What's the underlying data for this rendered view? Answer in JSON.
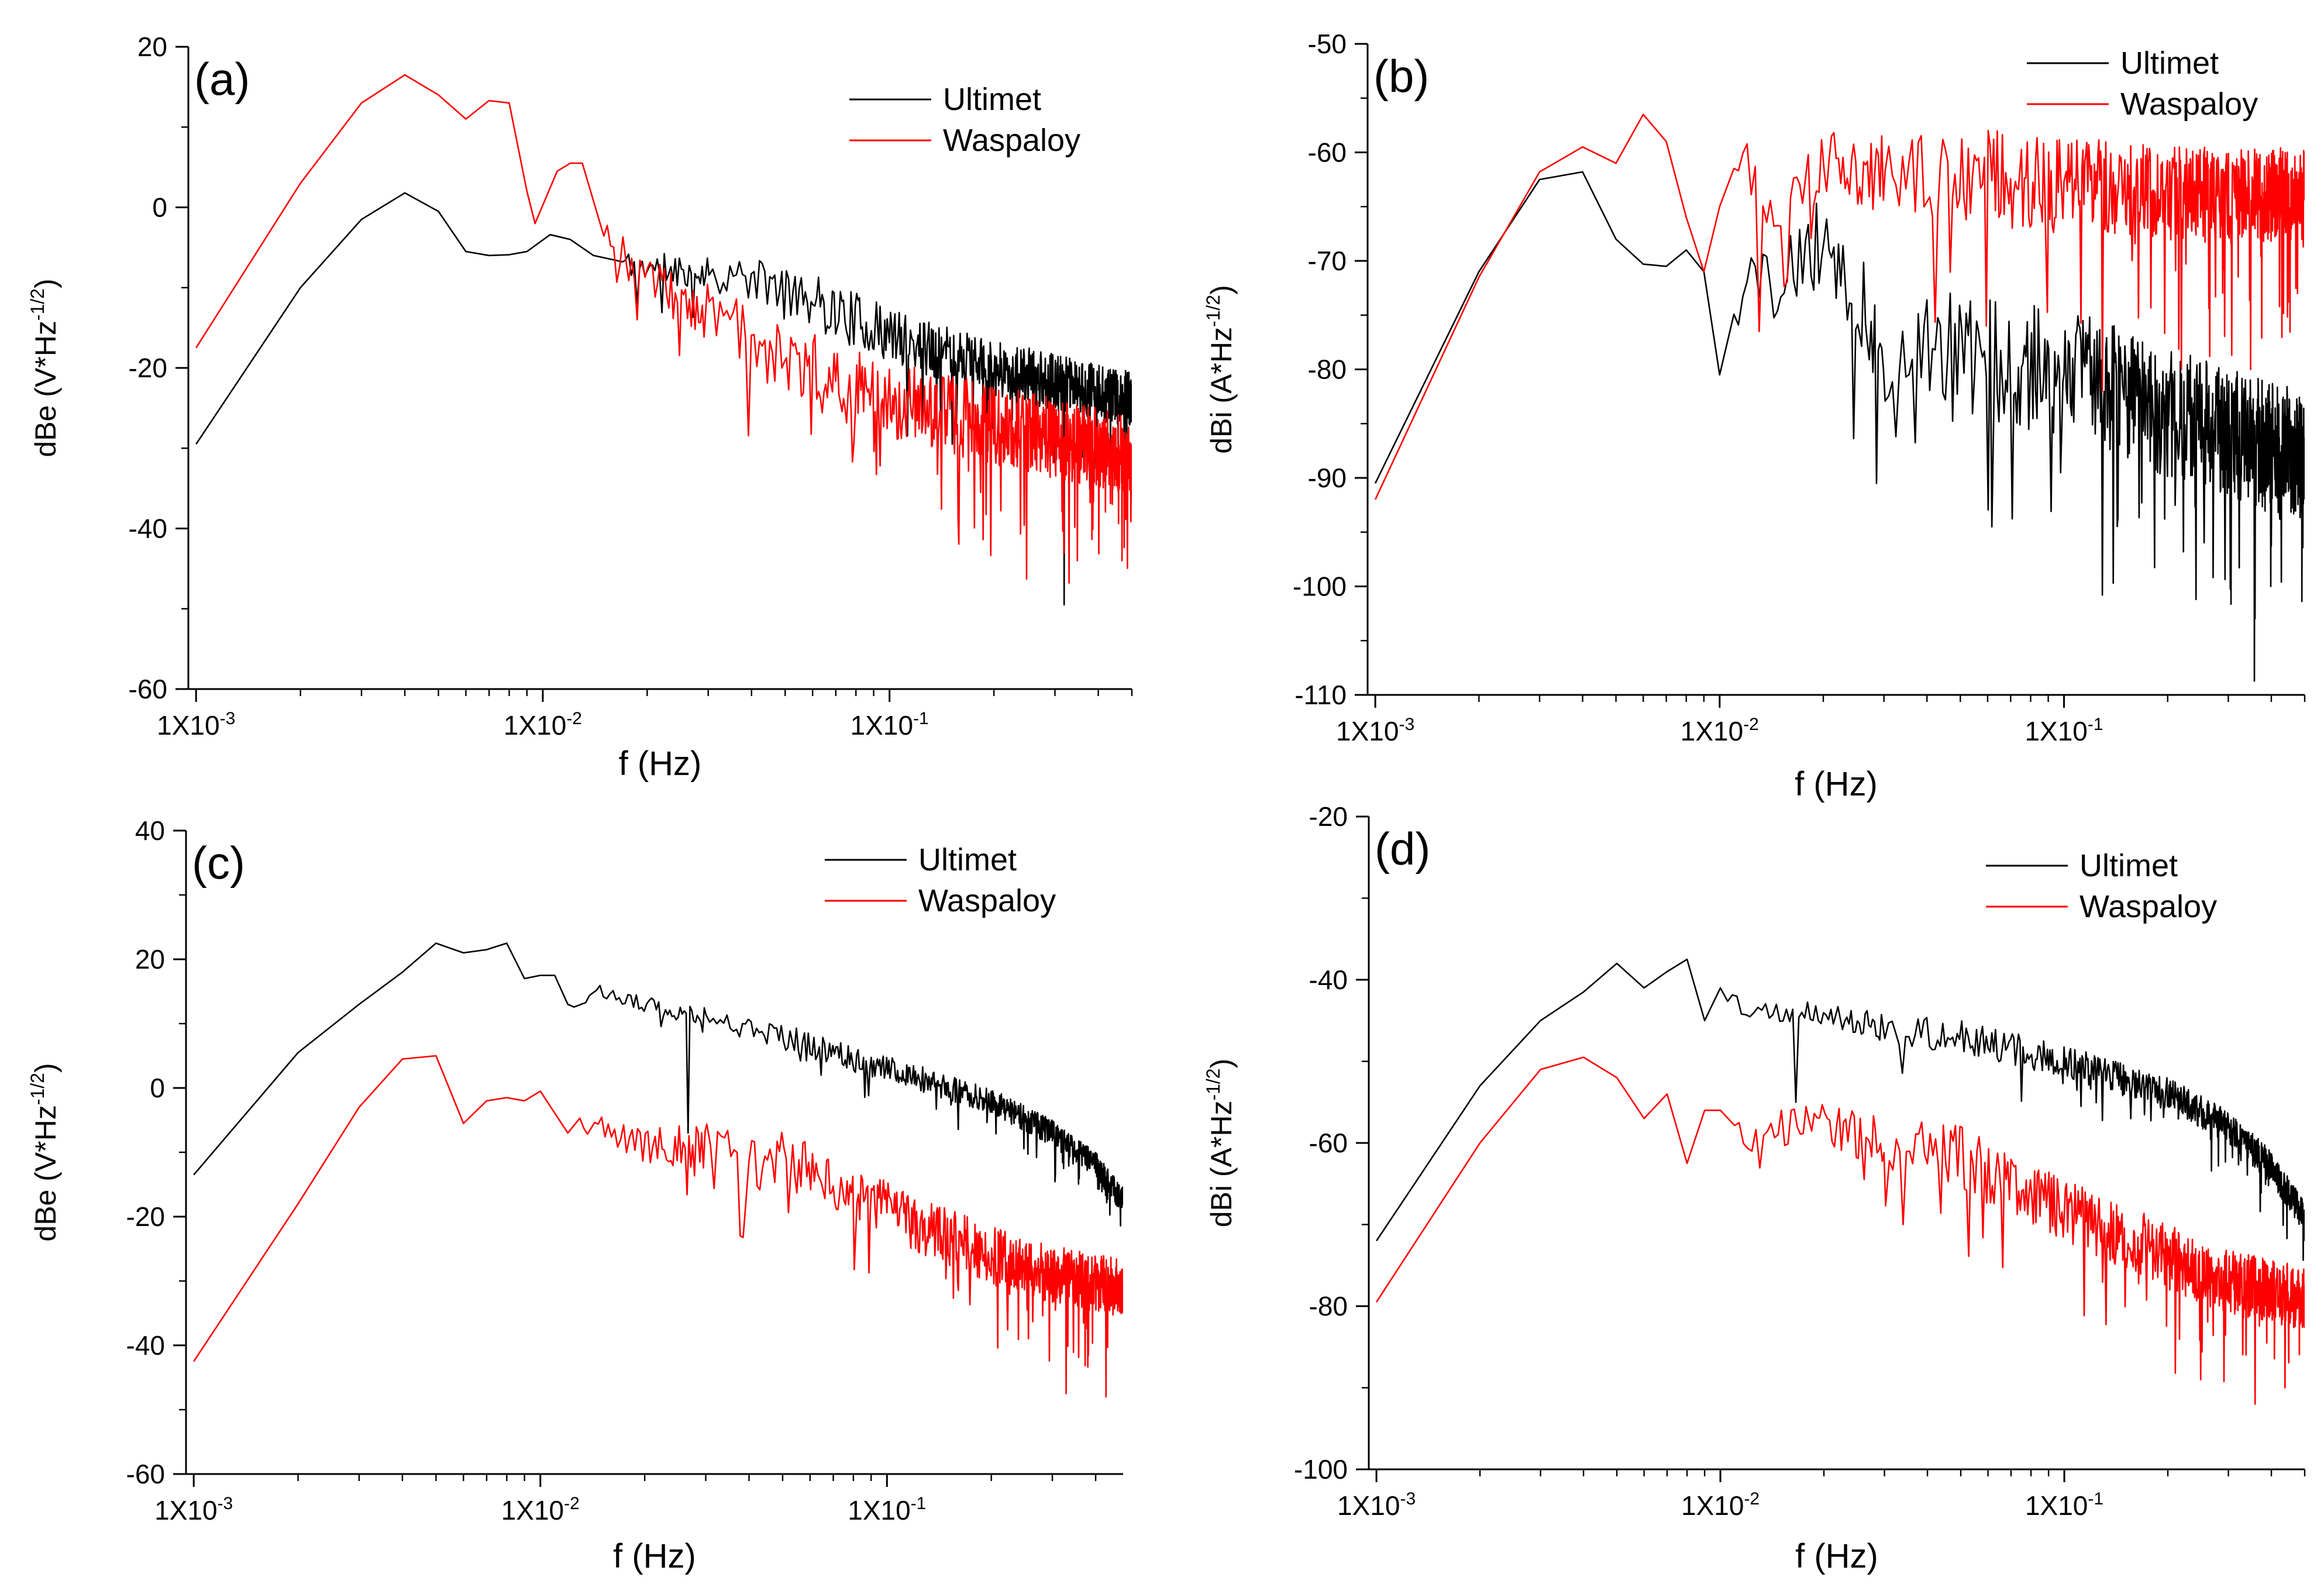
{
  "chart_data": [
    {
      "id": "a",
      "type": "line",
      "panel_label": "(a)",
      "xscale": "log",
      "xlim": [
        0.00095,
        0.5
      ],
      "ylim": [
        -60,
        20
      ],
      "yticks": [
        20,
        0,
        -20,
        -40,
        -60
      ],
      "xticks": [
        {
          "base": "1X10",
          "exp": "-3"
        },
        {
          "base": "1X10",
          "exp": "-2"
        },
        {
          "base": "1X10",
          "exp": "-1"
        }
      ],
      "xlabel": "f (Hz)",
      "ylabel": {
        "main": "dBe (V*Hz",
        "exp": "-1/2",
        "close": ")"
      },
      "legend_position": "top-right",
      "series": [
        {
          "name": "Ultimet",
          "color": "#000000",
          "anchors": [
            [
              0.001,
              -29.5
            ],
            [
              0.002,
              -10
            ],
            [
              0.003,
              -1.5
            ],
            [
              0.004,
              1.8
            ],
            [
              0.005,
              -0.5
            ],
            [
              0.006,
              -5.5
            ],
            [
              0.007,
              -6
            ],
            [
              0.008,
              -5.9
            ],
            [
              0.009,
              -5.5
            ],
            [
              0.0105,
              -3.4
            ],
            [
              0.012,
              -4
            ],
            [
              0.014,
              -6
            ],
            [
              0.02,
              -7.5
            ],
            [
              0.03,
              -8
            ],
            [
              0.05,
              -10
            ],
            [
              0.1,
              -16
            ],
            [
              0.2,
              -20
            ],
            [
              0.5,
              -24
            ]
          ],
          "noise_start": 0.017,
          "noise_amplitude": 7,
          "seed": 11,
          "dips": [
            [
              0.019,
              -12
            ],
            [
              0.32,
              -49.5
            ],
            [
              0.42,
              -34
            ]
          ]
        },
        {
          "name": "Waspaloy",
          "color": "#ff0000",
          "anchors": [
            [
              0.001,
              -17.5
            ],
            [
              0.002,
              3
            ],
            [
              0.003,
              13
            ],
            [
              0.004,
              16.5
            ],
            [
              0.005,
              14
            ],
            [
              0.006,
              11
            ],
            [
              0.007,
              13.3
            ],
            [
              0.008,
              13
            ],
            [
              0.009,
              2
            ],
            [
              0.0095,
              -2
            ],
            [
              0.011,
              4.5
            ],
            [
              0.012,
              5.5
            ],
            [
              0.013,
              5.5
            ],
            [
              0.016,
              -5
            ],
            [
              0.02,
              -9
            ],
            [
              0.03,
              -13
            ],
            [
              0.05,
              -19
            ],
            [
              0.1,
              -24
            ],
            [
              0.2,
              -27
            ],
            [
              0.5,
              -31
            ]
          ],
          "noise_start": 0.015,
          "noise_amplitude": 10,
          "seed": 23,
          "dips": [
            [
              0.019,
              -14
            ],
            [
              0.35,
              -44
            ],
            [
              0.47,
              -44
            ]
          ]
        }
      ]
    },
    {
      "id": "b",
      "type": "line",
      "panel_label": "(b)",
      "xscale": "log",
      "xlim": [
        0.00095,
        0.5
      ],
      "ylim": [
        -110,
        -50
      ],
      "yticks": [
        -50,
        -60,
        -70,
        -80,
        -90,
        -100,
        -110
      ],
      "xticks": [
        {
          "base": "1X10",
          "exp": "-3"
        },
        {
          "base": "1X10",
          "exp": "-2"
        },
        {
          "base": "1X10",
          "exp": "-1"
        }
      ],
      "xlabel": "f (Hz)",
      "ylabel": {
        "main": "dBi (A*Hz",
        "exp": "-1/2",
        "close": ")"
      },
      "legend_position": "top-right",
      "series": [
        {
          "name": "Ultimet",
          "color": "#000000",
          "anchors": [
            [
              0.001,
              -90.5
            ],
            [
              0.002,
              -71
            ],
            [
              0.003,
              -62.5
            ],
            [
              0.004,
              -61.8
            ],
            [
              0.005,
              -68
            ],
            [
              0.006,
              -70.3
            ],
            [
              0.007,
              -70.5
            ],
            [
              0.008,
              -69
            ],
            [
              0.009,
              -71
            ],
            [
              0.01,
              -80.5
            ],
            [
              0.012,
              -70
            ],
            [
              0.014,
              -73
            ],
            [
              0.02,
              -68
            ],
            [
              0.03,
              -78
            ],
            [
              0.05,
              -79
            ],
            [
              0.1,
              -80
            ],
            [
              0.2,
              -84
            ],
            [
              0.5,
              -88
            ]
          ],
          "noise_start": 0.011,
          "noise_amplitude": 12,
          "seed": 37,
          "dips": [
            [
              0.029,
              -90.5
            ],
            [
              0.062,
              -94.5
            ],
            [
              0.4,
              -100
            ]
          ]
        },
        {
          "name": "Waspaloy",
          "color": "#ff0000",
          "anchors": [
            [
              0.001,
              -92
            ],
            [
              0.002,
              -71.5
            ],
            [
              0.003,
              -61.8
            ],
            [
              0.004,
              -59.5
            ],
            [
              0.005,
              -61
            ],
            [
              0.006,
              -56.5
            ],
            [
              0.007,
              -59
            ],
            [
              0.008,
              -66
            ],
            [
              0.009,
              -71
            ],
            [
              0.01,
              -65
            ],
            [
              0.012,
              -61
            ],
            [
              0.014,
              -66
            ],
            [
              0.02,
              -61
            ],
            [
              0.03,
              -62
            ],
            [
              0.05,
              -62
            ],
            [
              0.1,
              -63
            ],
            [
              0.2,
              -64
            ],
            [
              0.5,
              -64
            ]
          ],
          "noise_start": 0.011,
          "noise_amplitude": 9,
          "seed": 41,
          "dips": [
            [
              0.0135,
              -76.5
            ],
            [
              0.06,
              -76
            ],
            [
              0.13,
              -82
            ],
            [
              0.22,
              -80
            ],
            [
              0.35,
              -80
            ]
          ]
        }
      ]
    },
    {
      "id": "c",
      "type": "line",
      "panel_label": "(c)",
      "xscale": "log",
      "xlim": [
        0.00095,
        0.48
      ],
      "ylim": [
        -60,
        40
      ],
      "yticks": [
        40,
        20,
        0,
        -20,
        -40,
        -60
      ],
      "xticks": [
        {
          "base": "1X10",
          "exp": "-3"
        },
        {
          "base": "1X10",
          "exp": "-2"
        },
        {
          "base": "1X10",
          "exp": "-1"
        }
      ],
      "xlabel": "f (Hz)",
      "ylabel": {
        "main": "dBe (V*Hz",
        "exp": "-1/2",
        "close": ")"
      },
      "legend_position": "top-right",
      "series": [
        {
          "name": "Ultimet",
          "color": "#000000",
          "anchors": [
            [
              0.001,
              -13.5
            ],
            [
              0.002,
              5.5
            ],
            [
              0.003,
              13
            ],
            [
              0.004,
              18
            ],
            [
              0.005,
              22.5
            ],
            [
              0.006,
              21
            ],
            [
              0.007,
              21.5
            ],
            [
              0.008,
              22.5
            ],
            [
              0.009,
              17
            ],
            [
              0.01,
              17.5
            ],
            [
              0.011,
              17.5
            ],
            [
              0.012,
              13
            ],
            [
              0.015,
              15
            ],
            [
              0.02,
              13
            ],
            [
              0.03,
              11
            ],
            [
              0.05,
              8
            ],
            [
              0.1,
              3
            ],
            [
              0.2,
              -2
            ],
            [
              0.3,
              -7
            ],
            [
              0.4,
              -12
            ],
            [
              0.47,
              -17
            ]
          ],
          "noise_start": 0.0125,
          "noise_amplitude": 4,
          "seed": 53,
          "dips": [
            [
              0.0115,
              -18.5
            ],
            [
              0.027,
              -7
            ]
          ]
        },
        {
          "name": "Waspaloy",
          "color": "#ff0000",
          "anchors": [
            [
              0.001,
              -42.5
            ],
            [
              0.002,
              -18
            ],
            [
              0.003,
              -3
            ],
            [
              0.004,
              4.5
            ],
            [
              0.005,
              5
            ],
            [
              0.006,
              -5.5
            ],
            [
              0.007,
              -2
            ],
            [
              0.008,
              -1.5
            ],
            [
              0.009,
              -2
            ],
            [
              0.01,
              -0.5
            ],
            [
              0.012,
              -7
            ],
            [
              0.015,
              -6
            ],
            [
              0.02,
              -9
            ],
            [
              0.03,
              -9
            ],
            [
              0.05,
              -11
            ],
            [
              0.1,
              -19
            ],
            [
              0.2,
              -26
            ],
            [
              0.3,
              -29
            ],
            [
              0.47,
              -31
            ]
          ],
          "noise_start": 0.013,
          "noise_amplitude": 9,
          "seed": 67,
          "dips": [
            [
              0.038,
              -23
            ],
            [
              0.33,
              -47.5
            ],
            [
              0.43,
              -48
            ]
          ]
        }
      ]
    },
    {
      "id": "d",
      "type": "line",
      "panel_label": "(d)",
      "xscale": "log",
      "xlim": [
        0.00095,
        0.5
      ],
      "ylim": [
        -100,
        -20
      ],
      "yticks": [
        -20,
        -40,
        -60,
        -80,
        -100
      ],
      "xticks": [
        {
          "base": "1X10",
          "exp": "-3"
        },
        {
          "base": "1X10",
          "exp": "-2"
        },
        {
          "base": "1X10",
          "exp": "-1"
        }
      ],
      "xlabel": "f (Hz)",
      "ylabel": {
        "main": "dBi (A*Hz",
        "exp": "-1/2",
        "close": ")"
      },
      "legend_position": "top-right",
      "series": [
        {
          "name": "Ultimet",
          "color": "#000000",
          "anchors": [
            [
              0.001,
              -72
            ],
            [
              0.002,
              -53
            ],
            [
              0.003,
              -45
            ],
            [
              0.004,
              -41.5
            ],
            [
              0.005,
              -38
            ],
            [
              0.006,
              -41
            ],
            [
              0.007,
              -39
            ],
            [
              0.008,
              -37.5
            ],
            [
              0.009,
              -45
            ],
            [
              0.01,
              -41
            ],
            [
              0.012,
              -44
            ],
            [
              0.015,
              -44
            ],
            [
              0.02,
              -44
            ],
            [
              0.03,
              -46
            ],
            [
              0.05,
              -47
            ],
            [
              0.1,
              -50
            ],
            [
              0.2,
              -54
            ],
            [
              0.3,
              -58
            ],
            [
              0.4,
              -63
            ],
            [
              0.5,
              -69
            ]
          ],
          "noise_start": 0.0105,
          "noise_amplitude": 4,
          "seed": 79,
          "dips": [
            [
              0.017,
              -55
            ]
          ]
        },
        {
          "name": "Waspaloy",
          "color": "#ff0000",
          "anchors": [
            [
              0.001,
              -79.5
            ],
            [
              0.002,
              -60
            ],
            [
              0.003,
              -51
            ],
            [
              0.004,
              -49.5
            ],
            [
              0.005,
              -52
            ],
            [
              0.006,
              -57
            ],
            [
              0.007,
              -54
            ],
            [
              0.008,
              -62.5
            ],
            [
              0.009,
              -56
            ],
            [
              0.01,
              -56
            ],
            [
              0.012,
              -60
            ],
            [
              0.015,
              -58
            ],
            [
              0.02,
              -58
            ],
            [
              0.03,
              -60
            ],
            [
              0.05,
              -62
            ],
            [
              0.1,
              -68
            ],
            [
              0.2,
              -74
            ],
            [
              0.3,
              -77
            ],
            [
              0.5,
              -79
            ]
          ],
          "noise_start": 0.011,
          "noise_amplitude": 8,
          "seed": 97,
          "dips": [
            [
              0.034,
              -70
            ],
            [
              0.25,
              -89
            ],
            [
              0.36,
              -92
            ],
            [
              0.44,
              -90
            ]
          ]
        }
      ]
    }
  ]
}
